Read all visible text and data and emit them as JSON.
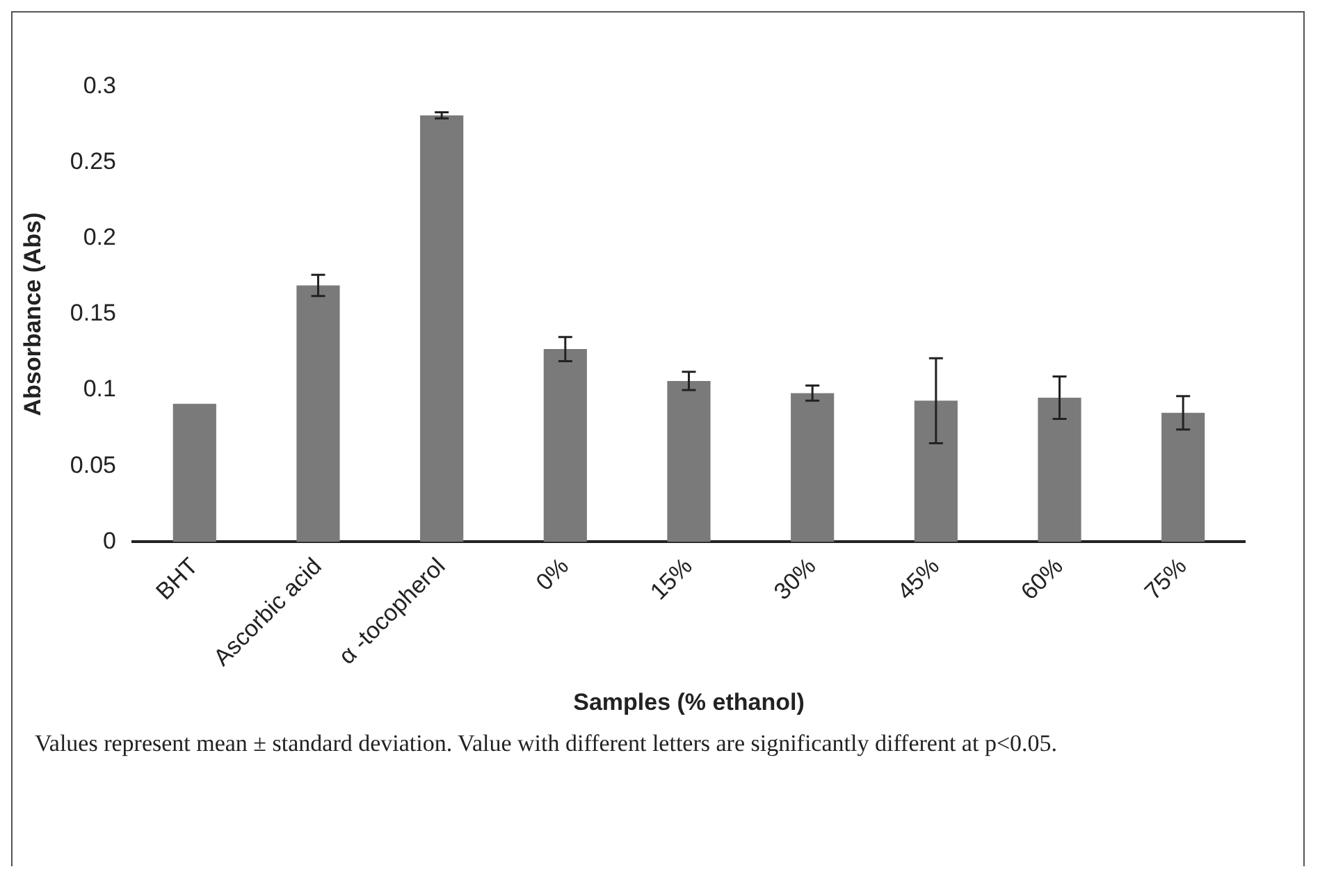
{
  "chart_data": {
    "type": "bar",
    "xlabel": "Samples (% ethanol)",
    "ylabel": "Absorbance (Abs)",
    "categories": [
      "BHT",
      "Ascorbic acid",
      "α -tocopherol",
      "0%",
      "15%",
      "30%",
      "45%",
      "60%",
      "75%"
    ],
    "values": [
      0.091,
      0.169,
      0.281,
      0.127,
      0.106,
      0.098,
      0.093,
      0.095,
      0.085
    ],
    "errors": [
      null,
      0.007,
      0.002,
      0.008,
      0.006,
      0.005,
      0.028,
      0.014,
      0.011
    ],
    "color": "#7a7a7a",
    "ylim": [
      0,
      0.3
    ],
    "yticks": [
      0,
      0.05,
      0.1,
      0.15,
      0.2,
      0.25,
      0.3
    ],
    "grid": false,
    "legend": false,
    "annotations": [
      "Values represent mean ± standard deviation. Value with different letters are significantly different at p<0.05."
    ]
  }
}
